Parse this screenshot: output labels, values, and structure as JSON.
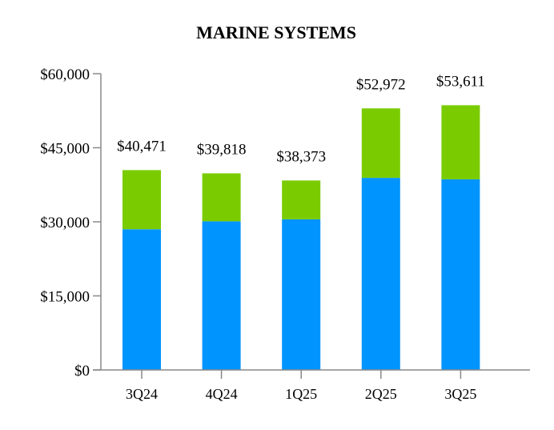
{
  "chart_data": {
    "type": "bar",
    "stacked": true,
    "title": "MARINE SYSTEMS",
    "xlabel": "",
    "ylabel": "",
    "categories": [
      "3Q24",
      "4Q24",
      "1Q25",
      "2Q25",
      "3Q25"
    ],
    "series": [
      {
        "values": [
          28500,
          30100,
          30500,
          38900,
          38600
        ],
        "color": "#0094FF"
      },
      {
        "values": [
          11971,
          9718,
          7873,
          14072,
          15011
        ],
        "color": "#7ACC00"
      }
    ],
    "totals": [
      40471,
      39818,
      38373,
      52972,
      53611
    ],
    "total_labels": [
      "$40,471",
      "$39,818",
      "$38,373",
      "$52,972",
      "$53,611"
    ],
    "ylim": [
      0,
      60000
    ],
    "yticks": [
      0,
      15000,
      30000,
      45000,
      60000
    ],
    "ytick_labels": [
      "$0",
      "$15,000",
      "$30,000",
      "$45,000",
      "$60,000"
    ],
    "grid": false,
    "legend": "none"
  }
}
